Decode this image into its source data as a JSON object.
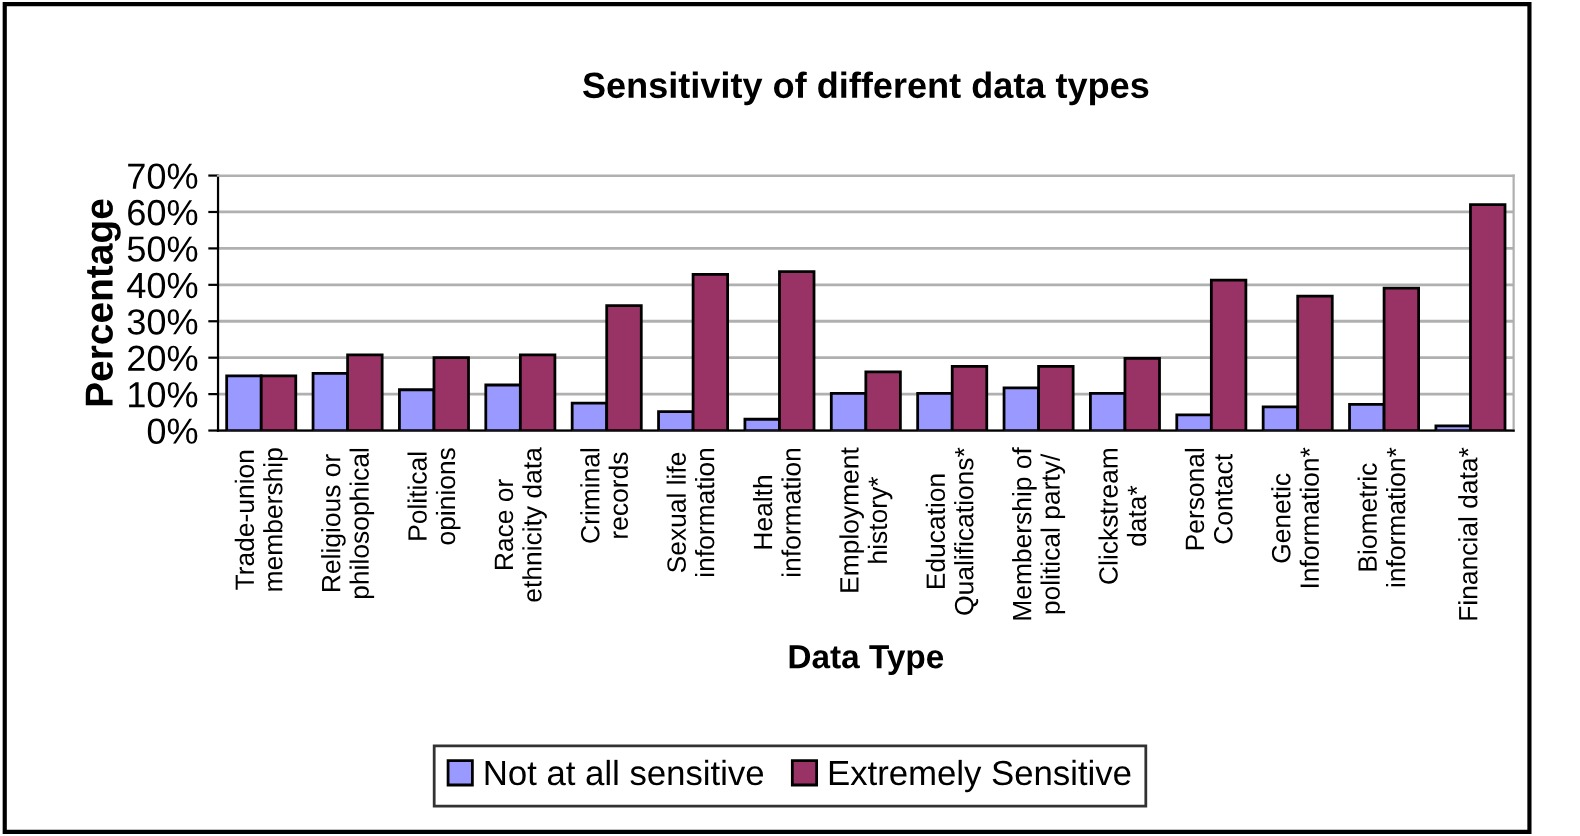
{
  "chart_data": {
    "type": "bar",
    "title": "Sensitivity of different data types",
    "xlabel": "Data Type",
    "ylabel": "Percentage",
    "categories": [
      "Trade-union\nmembership",
      "Religious or\nphilosophical",
      "Political\nopinions",
      "Race or\nethnicity data",
      "Criminal\nrecords",
      "Sexual life\ninformation",
      "Health\ninformation",
      "Employment\nhistory*",
      "Education\nQualifications*",
      "Membership of\npolitical party/",
      "Clickstream\ndata*",
      "Personal\nContact",
      "Genetic\nInformation*",
      "Biometric\ninformation*",
      "Financial data*"
    ],
    "series": [
      {
        "name": "Not at all sensitive",
        "color": "#9999ff",
        "values": [
          15,
          15.7,
          11.2,
          12.5,
          7.5,
          5.2,
          3.1,
          10.2,
          10.2,
          11.7,
          10.2,
          4.3,
          6.5,
          7.2,
          1.3
        ]
      },
      {
        "name": "Extremely Sensitive",
        "color": "#993366",
        "values": [
          15,
          20.8,
          20,
          20.8,
          34.3,
          42.9,
          43.6,
          16.1,
          17.6,
          17.6,
          19.8,
          41.3,
          36.9,
          39.1,
          62
        ]
      }
    ],
    "ylim": [
      0,
      70
    ],
    "yticks": [
      {
        "value": 0,
        "label": "0%"
      },
      {
        "value": 10,
        "label": "10%"
      },
      {
        "value": 20,
        "label": "20%"
      },
      {
        "value": 30,
        "label": "30%"
      },
      {
        "value": 40,
        "label": "40%"
      },
      {
        "value": 50,
        "label": "50%"
      },
      {
        "value": 60,
        "label": "60%"
      },
      {
        "value": 70,
        "label": "70%"
      }
    ],
    "grid": "y",
    "legend": "bottom"
  }
}
